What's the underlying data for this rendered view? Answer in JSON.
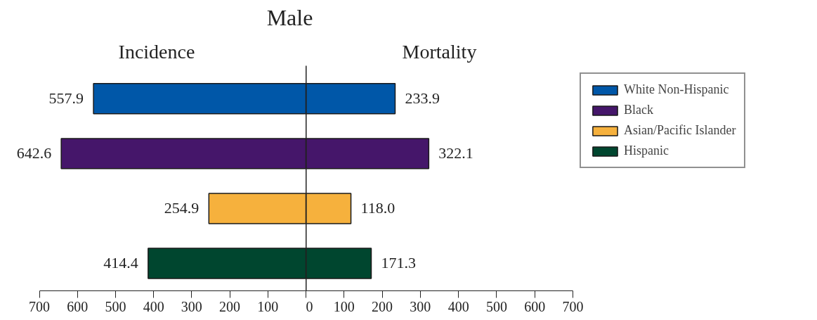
{
  "chart_data": [
    {
      "type": "bar",
      "orientation": "horizontal",
      "title": "Male",
      "subtitle": "Incidence",
      "categories": [
        null,
        null,
        null,
        null
      ],
      "series": [
        {
          "color": "#0057a8",
          "values": [
            557.9,
            null,
            null,
            null
          ],
          "value_labels": [
            "557.9",
            null,
            null,
            null
          ]
        },
        {
          "color": "#45166a",
          "values": [
            null,
            642.6,
            null,
            null
          ],
          "value_labels": [
            null,
            "642.6",
            null,
            null
          ]
        },
        {
          "color": "#f6b13d",
          "values": [
            null,
            null,
            254.9,
            null
          ],
          "value_labels": [
            null,
            null,
            "254.9",
            null
          ]
        },
        {
          "color": "#00462f",
          "values": [
            null,
            null,
            null,
            414.4
          ],
          "value_labels": [
            null,
            null,
            null,
            "414.4"
          ]
        }
      ],
      "xlim": [
        700,
        0
      ],
      "xticks": [
        700,
        600,
        500,
        400,
        300,
        200,
        100
      ],
      "tick_labels": "x",
      "grid": false
    },
    {
      "type": "bar",
      "orientation": "horizontal",
      "subtitle": "Mortality",
      "categories": [
        null,
        null,
        null,
        null
      ],
      "series": [
        {
          "name": "White Non-Hispanic",
          "color": "#0057a8",
          "values": [
            233.9,
            null,
            null,
            null
          ],
          "value_labels": [
            "233.9",
            null,
            null,
            null
          ]
        },
        {
          "name": "Black",
          "color": "#45166a",
          "values": [
            null,
            322.1,
            null,
            null
          ],
          "value_labels": [
            null,
            "322.1",
            null,
            null
          ]
        },
        {
          "name": "Asian/Pacific Islander",
          "color": "#f6b13d",
          "values": [
            null,
            null,
            118.0,
            null
          ],
          "value_labels": [
            null,
            null,
            "118.0",
            null
          ]
        },
        {
          "name": "Hispanic",
          "color": "#00462f",
          "values": [
            null,
            null,
            null,
            171.3
          ],
          "value_labels": [
            null,
            null,
            null,
            "171.3"
          ]
        }
      ],
      "xlim": [
        0,
        700
      ],
      "xticks": [
        0,
        100,
        200,
        300,
        400,
        500,
        600,
        700
      ],
      "tick_labels": "x",
      "grid": false,
      "legend": "right"
    }
  ]
}
